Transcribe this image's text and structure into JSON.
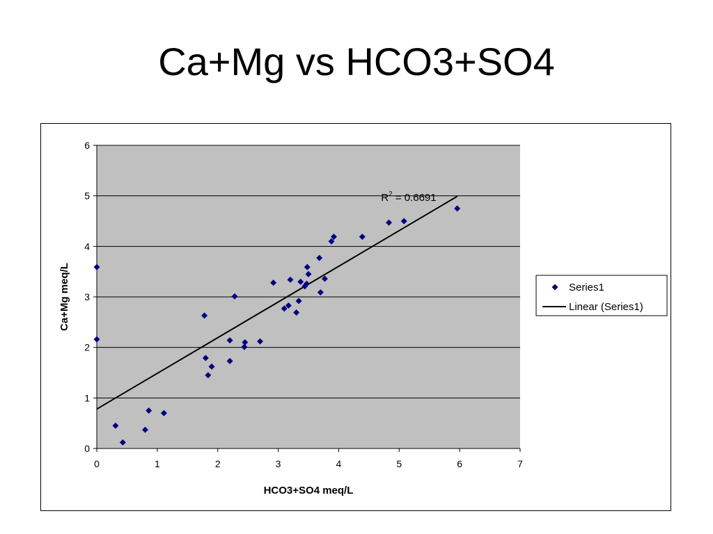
{
  "slide": {
    "title": "Ca+Mg vs HCO3+SO4"
  },
  "chart_data": {
    "type": "scatter",
    "xlabel": "HCO3+SO4 meq/L",
    "ylabel": "Ca+Mg meq/L",
    "xlim": [
      0,
      7
    ],
    "ylim": [
      0,
      6
    ],
    "xticks": [
      0,
      1,
      2,
      3,
      4,
      5,
      6,
      7
    ],
    "yticks": [
      0,
      1,
      2,
      3,
      4,
      5,
      6
    ],
    "grid": "horizontal",
    "plot_background": "#c0c0c0",
    "legend_position": "right",
    "series": [
      {
        "name": "Series1",
        "marker": "diamond",
        "color": "#000080",
        "points": [
          [
            0.0,
            3.59
          ],
          [
            0.0,
            2.16
          ],
          [
            0.31,
            0.45
          ],
          [
            0.43,
            0.12
          ],
          [
            0.8,
            0.37
          ],
          [
            0.86,
            0.75
          ],
          [
            1.11,
            0.7
          ],
          [
            1.78,
            2.63
          ],
          [
            1.8,
            1.79
          ],
          [
            1.84,
            1.45
          ],
          [
            1.9,
            1.62
          ],
          [
            2.2,
            2.14
          ],
          [
            2.2,
            1.73
          ],
          [
            2.28,
            3.01
          ],
          [
            2.44,
            2.01
          ],
          [
            2.45,
            2.1
          ],
          [
            2.7,
            2.12
          ],
          [
            2.92,
            3.28
          ],
          [
            3.1,
            2.77
          ],
          [
            3.17,
            2.83
          ],
          [
            3.2,
            3.34
          ],
          [
            3.3,
            2.69
          ],
          [
            3.34,
            2.92
          ],
          [
            3.37,
            3.3
          ],
          [
            3.44,
            3.21
          ],
          [
            3.47,
            3.26
          ],
          [
            3.48,
            3.59
          ],
          [
            3.5,
            3.45
          ],
          [
            3.68,
            3.77
          ],
          [
            3.7,
            3.09
          ],
          [
            3.77,
            3.36
          ],
          [
            3.88,
            4.1
          ],
          [
            3.92,
            4.19
          ],
          [
            4.39,
            4.19
          ],
          [
            4.83,
            4.47
          ],
          [
            5.08,
            4.5
          ],
          [
            5.96,
            4.75
          ]
        ]
      },
      {
        "name": "Linear (Series1)",
        "type": "trendline",
        "color": "#000000",
        "x": [
          0,
          5.96
        ],
        "y": [
          0.78,
          4.99
        ]
      }
    ],
    "annotations": [
      {
        "text_base": "R",
        "superscript": "2",
        "text_rest": " = 0.6691"
      }
    ]
  }
}
